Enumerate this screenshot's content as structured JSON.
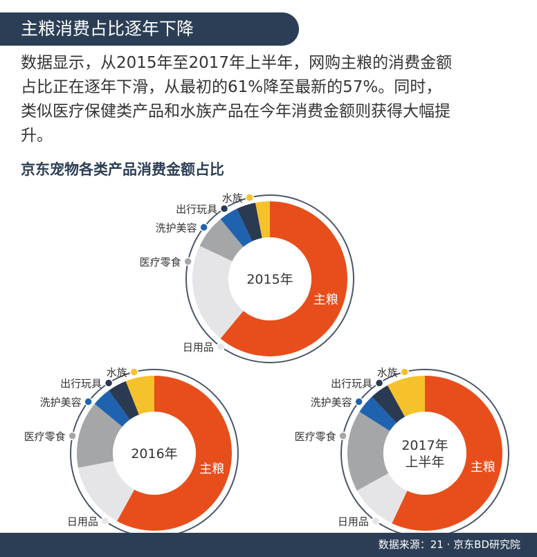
{
  "header": {
    "title": "主粮消费占比逐年下降"
  },
  "intro_lines": [
    "数据显示，从2015年至2017年上半年，网购主粮的消费金额",
    "占比正在逐年下滑，从最初的61%降至最新的57%。同时，",
    "类似医疗保健类产品和水族产品在今年消费金额则获得大幅提",
    "升。"
  ],
  "subtitle": "京东宠物各类产品消费金额占比",
  "categories": [
    "主粮",
    "日用品",
    "医疗零食",
    "洗护美容",
    "出行玩具",
    "水族"
  ],
  "colors": {
    "主粮": "#e84e1b",
    "日用品": "#e5e5e7",
    "医疗零食": "#a5a6a8",
    "洗护美容": "#1f63b0",
    "出行玩具": "#2a3a52",
    "水族": "#f5c22b",
    "header_bg": "#2c3e55"
  },
  "chart_data": [
    {
      "type": "pie",
      "center_label": [
        "2015年"
      ],
      "categories": [
        "主粮",
        "日用品",
        "医疗零食",
        "洗护美容",
        "出行玩具",
        "水族"
      ],
      "values": [
        61,
        21,
        7,
        4,
        4,
        3
      ]
    },
    {
      "type": "pie",
      "center_label": [
        "2016年"
      ],
      "categories": [
        "主粮",
        "日用品",
        "医疗零食",
        "洗护美容",
        "出行玩具",
        "水族"
      ],
      "values": [
        58,
        14,
        14,
        4,
        4,
        6
      ]
    },
    {
      "type": "pie",
      "center_label": [
        "2017年",
        "上半年"
      ],
      "categories": [
        "主粮",
        "日用品",
        "医疗零食",
        "洗护美容",
        "出行玩具",
        "水族"
      ],
      "values": [
        57,
        10,
        17,
        4,
        4,
        8
      ]
    }
  ],
  "footer": {
    "source": "数据来源：21 · 京东BD研究院"
  }
}
